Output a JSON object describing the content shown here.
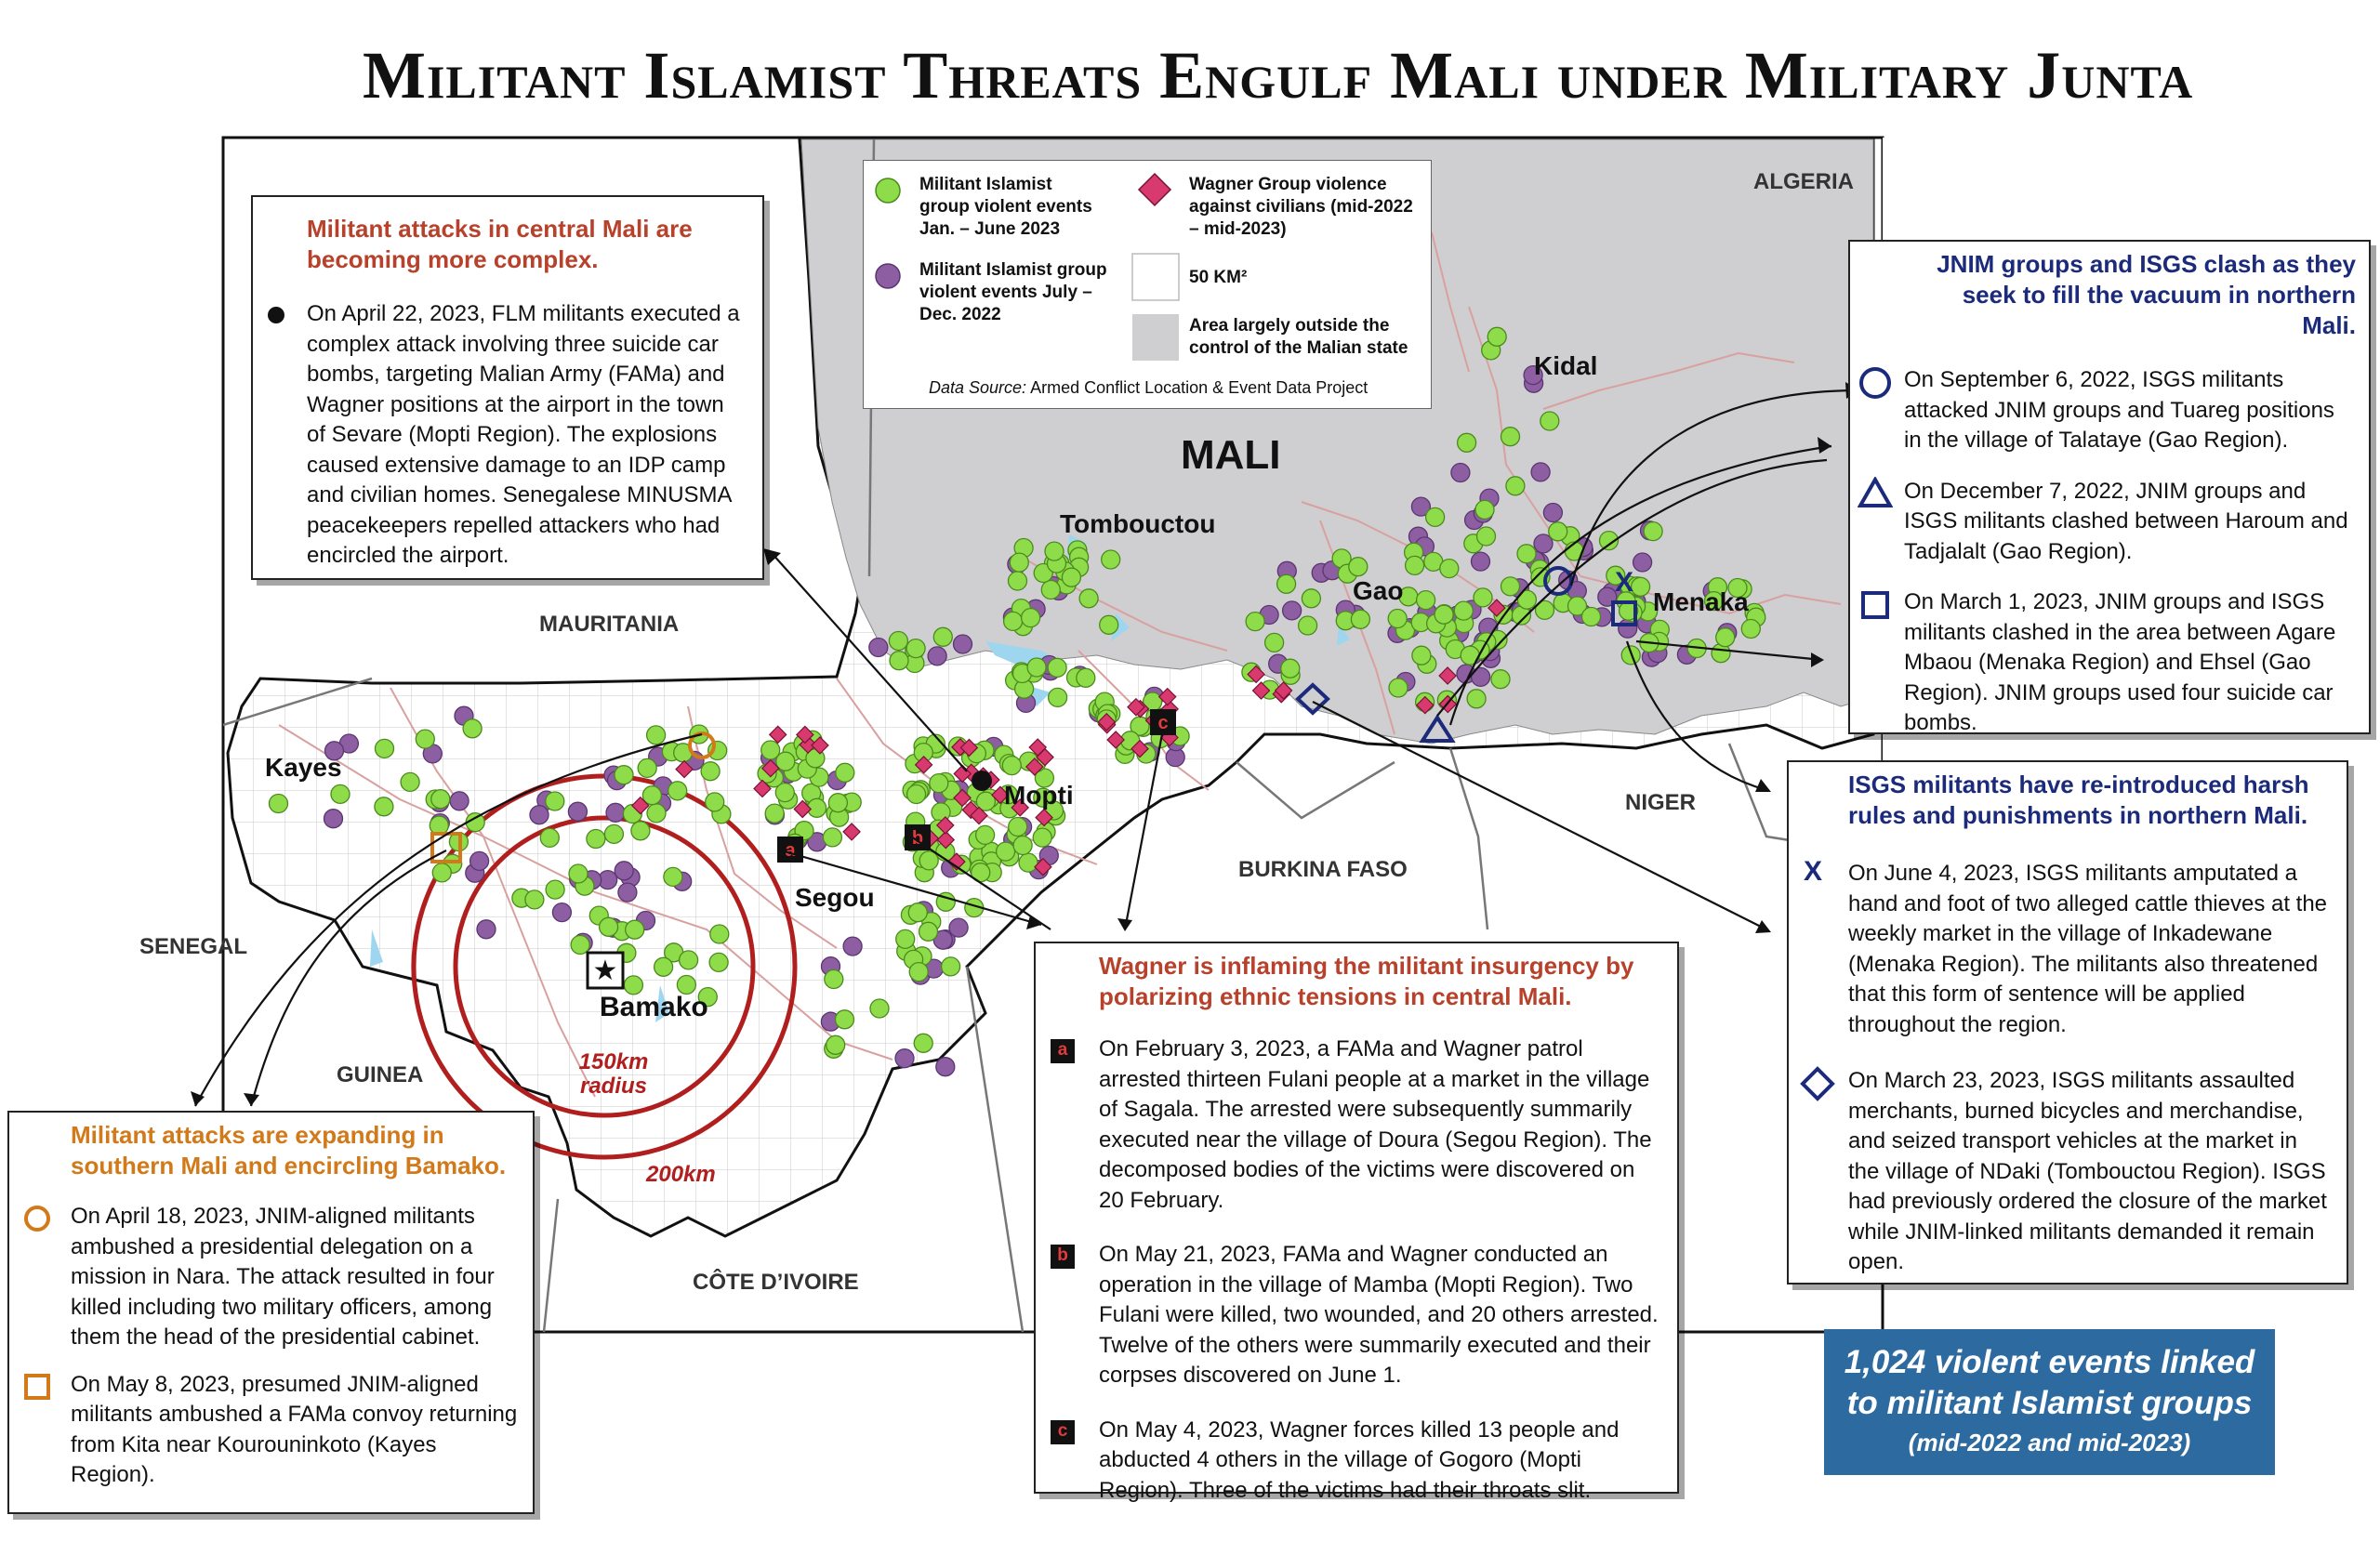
{
  "title": "Militant Islamist Threats Engulf Mali under Military Junta",
  "legend": {
    "green": "Militant Islamist group violent events Jan. – June 2023",
    "purple": "Militant Islamist group violent events July – Dec. 2022",
    "wagner": "Wagner Group violence against civilians (mid-2022 – mid-2023)",
    "grid": "50 KM²",
    "gray": "Area largely outside the control of the Malian state",
    "source_prefix": "Data Source:",
    "source": "Armed Conflict Location & Event Data Project"
  },
  "map": {
    "country": "MALI",
    "cities": [
      "Tombouctou",
      "Kidal",
      "Gao",
      "Menaka",
      "Mopti",
      "Segou",
      "Bamako",
      "Kayes"
    ],
    "neighbors": [
      "ALGERIA",
      "MAURITANIA",
      "SENEGAL",
      "GUINEA",
      "CÔTE D’IVOIRE",
      "BURKINA FASO",
      "NIGER"
    ],
    "radius_inner": "150km radius",
    "radius_outer": "200km",
    "incident_letters": [
      "a",
      "b",
      "c"
    ]
  },
  "boxes": {
    "central": {
      "heading": "Militant attacks in central Mali are becoming more complex.",
      "item": "On April 22, 2023, FLM militants executed a complex attack involving three suicide car bombs, targeting Malian Army (FAMa) and Wagner positions at the airport in the town of Sevare (Mopti Region). The explosions caused extensive damage to an IDP camp and civilian homes. Senegalese MINUSMA peacekeepers repelled attackers who had encircled the airport."
    },
    "south": {
      "heading": "Militant attacks are expanding in southern Mali and encircling Bamako.",
      "item1": "On April 18, 2023, JNIM-aligned militants ambushed a presidential delegation on a mission in Nara. The attack resulted in four killed including two military officers, among them the head of the presidential cabinet.",
      "item2": "On May 8, 2023, presumed JNIM-aligned militants ambushed a FAMa convoy returning from Kita near Kourouninkoto (Kayes Region)."
    },
    "wagner": {
      "heading": "Wagner is inflaming the militant insurgency by polarizing ethnic tensions in central Mali.",
      "a": "On February 3, 2023, a FAMa and Wagner patrol arrested thirteen Fulani people at a market in the village of Sagala. The arrested were subsequently summarily executed near the village of Doura (Segou Region). The decomposed bodies of the victims were discovered on 20 February.",
      "b": "On May 21, 2023, FAMa and Wagner conducted an operation in the village of Mamba (Mopti Region). Two Fulani were killed, two wounded, and 20 others arrested. Twelve of the others were summarily executed and their corpses discovered on June 1.",
      "c": "On May 4, 2023, Wagner forces killed 13 people and abducted 4 others in the village of Gogoro (Mopti Region). Three of the victims had their throats slit."
    },
    "jnim": {
      "heading": "JNIM groups and ISGS clash as they seek to fill the vacuum in northern Mali.",
      "item1": "On September 6, 2022, ISGS militants attacked JNIM groups and Tuareg positions in the village of Talataye (Gao Region).",
      "item2": "On December 7, 2022, JNIM groups and ISGS militants clashed between Haroum and Tadjalalt (Gao Region).",
      "item3": "On March 1, 2023, JNIM groups and ISGS militants clashed in the area between Agare Mbaou (Menaka Region) and Ehsel (Gao Region). JNIM groups used four suicide car bombs."
    },
    "isgs": {
      "heading": "ISGS militants have re-introduced harsh rules and punishments in northern Mali.",
      "item1": "On June 4, 2023, ISGS militants amputated a hand and foot of two alleged cattle thieves at the weekly market in the village of Inkadewane (Menaka Region). The militants also threatened that this form of sentence will be applied throughout the region.",
      "item2": "On March 23, 2023, ISGS militants assaulted merchants, burned bicycles and merchandise, and seized transport vehicles at the market in the village of NDaki (Tombouctou Region). ISGS had previously ordered the closure of the market while JNIM-linked militants demanded it remain open."
    }
  },
  "stat": {
    "line1": "1,024 violent events linked",
    "line2": "to militant Islamist groups",
    "line3": "(mid-2022 and mid-2023)"
  },
  "colors": {
    "green": "#8fdc4a",
    "purple": "#8e5ea2",
    "wagner": "#d8396f",
    "gray_zone": "#cfcfd1",
    "ring": "#b01e1e",
    "stat_bg": "#2d6aa0",
    "heading_red": "#b7412a",
    "heading_orange": "#d2791a",
    "heading_navy": "#1b2a7a"
  }
}
